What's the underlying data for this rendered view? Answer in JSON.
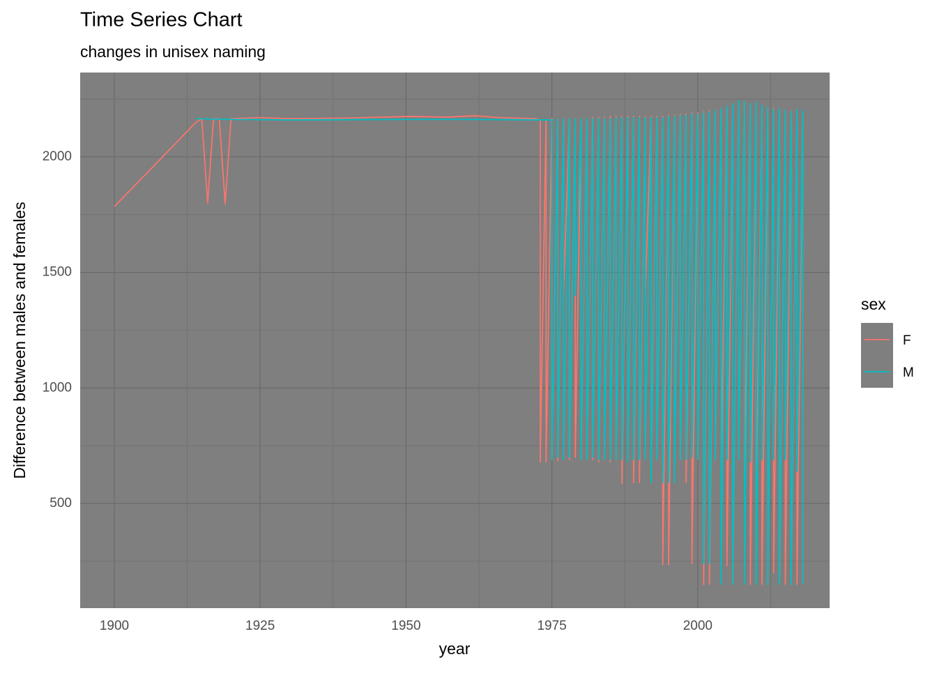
{
  "chart_data": {
    "type": "line",
    "title": "Time Series Chart",
    "subtitle": "changes in unisex naming",
    "x_label": "year",
    "y_label": "Difference between males and females",
    "legend_title": "sex",
    "legend_position": "right",
    "grid": true,
    "xlim": [
      1894.15,
      2022.6
    ],
    "ylim": [
      47,
      2365
    ],
    "xticks": [
      1900,
      1925,
      1950,
      1975,
      2000
    ],
    "yticks": [
      500,
      1000,
      1500,
      2000
    ],
    "xminorticks": [
      1912.5,
      1937.5,
      1962.5,
      1987.5,
      2012.5
    ],
    "yminorticks": [
      250,
      750,
      1250,
      1750,
      2250
    ],
    "series": [
      {
        "name": "F",
        "color": "#f8766d",
        "x": [
          1900,
          1905,
          1910,
          1914,
          1915,
          1916,
          1917,
          1918,
          1919,
          1920,
          1925,
          1930,
          1940,
          1951,
          1957,
          1962,
          1966,
          1972,
          1973,
          1973,
          1974,
          1974,
          1975,
          1975,
          1976,
          1976,
          1977,
          1977,
          1978,
          1978,
          1979,
          1979,
          1980,
          1980,
          1981,
          1981,
          1982,
          1982,
          1983,
          1983,
          1984,
          1984,
          1985,
          1985,
          1986,
          1986,
          1987,
          1987,
          1988,
          1988,
          1989,
          1989,
          1990,
          1990,
          1991,
          1991,
          1992,
          1992,
          1993,
          1993,
          1994,
          1994,
          1995,
          1995,
          1996,
          1996,
          1997,
          1997,
          1998,
          1998,
          1999,
          1999,
          2000,
          2000,
          2001,
          2001,
          2002,
          2002,
          2003,
          2003,
          2004,
          2004,
          2005,
          2005,
          2006,
          2006,
          2007,
          2007,
          2008,
          2008,
          2009,
          2009,
          2010,
          2010,
          2011,
          2011,
          2012,
          2012,
          2013,
          2013,
          2014,
          2014,
          2015,
          2015,
          2016,
          2016,
          2017,
          2017,
          2018,
          2018
        ],
        "values": [
          1785,
          1915,
          2045,
          2150,
          2165,
          1800,
          2165,
          2165,
          1795,
          2165,
          2170,
          2165,
          2168,
          2175,
          2172,
          2178,
          2170,
          2165,
          2160,
          680,
          2160,
          680,
          2165,
          690,
          2165,
          685,
          2165,
          1400,
          2165,
          690,
          2165,
          700,
          2165,
          690,
          2165,
          690,
          2170,
          690,
          2170,
          680,
          2170,
          690,
          2175,
          680,
          2175,
          690,
          2175,
          585,
          2175,
          690,
          2175,
          590,
          2175,
          590,
          2175,
          1400,
          2175,
          690,
          2175,
          690,
          2175,
          235,
          2180,
          235,
          2180,
          690,
          2185,
          690,
          2185,
          590,
          2190,
          240,
          2190,
          690,
          2195,
          150,
          2200,
          150,
          2200,
          690,
          2210,
          640,
          2215,
          230,
          2220,
          150,
          2230,
          690,
          2230,
          600,
          2225,
          150,
          2225,
          480,
          2220,
          150,
          2215,
          150,
          2210,
          200,
          2205,
          150,
          2200,
          150,
          2195,
          150,
          2190,
          150,
          2185,
          150
        ]
      },
      {
        "name": "M",
        "color": "#00bfc4",
        "x": [
          1914,
          1920,
          1930,
          1950,
          1960,
          1974,
          1975,
          1975,
          1976,
          1976,
          1977,
          1977,
          1978,
          1978,
          1979,
          1979,
          1980,
          1980,
          1981,
          1981,
          1982,
          1982,
          1983,
          1983,
          1984,
          1984,
          1985,
          1985,
          1986,
          1986,
          1987,
          1987,
          1988,
          1988,
          1989,
          1989,
          1990,
          1990,
          1991,
          1991,
          1992,
          1992,
          1993,
          1993,
          1994,
          1994,
          1995,
          1995,
          1996,
          1996,
          1997,
          1997,
          1998,
          1998,
          1999,
          1999,
          2000,
          2000,
          2001,
          2001,
          2002,
          2002,
          2003,
          2003,
          2004,
          2004,
          2005,
          2005,
          2006,
          2006,
          2007,
          2007,
          2008,
          2008,
          2009,
          2009,
          2010,
          2010,
          2011,
          2011,
          2012,
          2012,
          2013,
          2013,
          2014,
          2014,
          2015,
          2015,
          2016,
          2016,
          2017,
          2017,
          2018,
          2018
        ],
        "values": [
          2165,
          2162,
          2160,
          2162,
          2162,
          2160,
          2160,
          690,
          2165,
          700,
          2165,
          690,
          2165,
          700,
          2165,
          1400,
          2165,
          690,
          2165,
          690,
          2165,
          700,
          2165,
          690,
          2165,
          690,
          2165,
          690,
          2170,
          690,
          2170,
          690,
          2170,
          680,
          2170,
          690,
          2170,
          690,
          2170,
          690,
          2170,
          590,
          2170,
          690,
          2170,
          590,
          2175,
          590,
          2175,
          590,
          2180,
          690,
          2180,
          690,
          2185,
          700,
          2185,
          690,
          2190,
          240,
          2195,
          240,
          2200,
          690,
          2210,
          150,
          2220,
          690,
          2230,
          150,
          2245,
          690,
          2240,
          150,
          2230,
          680,
          2235,
          150,
          2225,
          690,
          2215,
          150,
          2205,
          690,
          2210,
          150,
          2200,
          690,
          2195,
          150,
          2205,
          640,
          2200,
          150
        ]
      }
    ]
  }
}
